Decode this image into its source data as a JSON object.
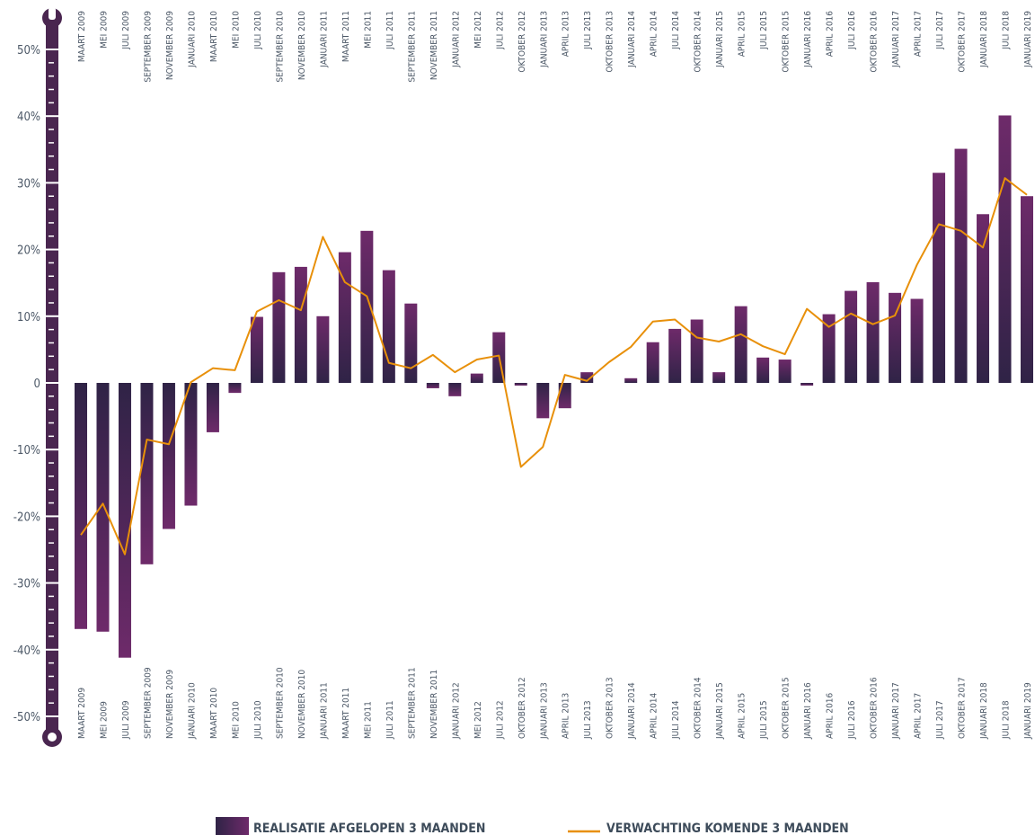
{
  "chart_data": {
    "type": "bar",
    "categories": [
      "MAART 2009",
      "MEI 2009",
      "JULI 2009",
      "SEPTEMBER 2009",
      "NOVEMBER 2009",
      "JANUARI 2010",
      "MAART 2010",
      "MEI 2010",
      "JULI 2010",
      "SEPTEMBER 2010",
      "NOVEMBER 2010",
      "JANUARI 2011",
      "MAART 2011",
      "MEI 2011",
      "JULI 2011",
      "SEPTEMBER 2011",
      "NOVEMBER 2011",
      "JANUARI 2012",
      "MEI 2012",
      "JULI 2012",
      "OKTOBER 2012",
      "JANUARI 2013",
      "APRIL 2013",
      "JULI 2013",
      "OKTOBER 2013",
      "JANUARI 2014",
      "APRIL 2014",
      "JULI 2014",
      "OKTOBER 2014",
      "JANUARI 2015",
      "APRIL 2015",
      "JULI 2015",
      "OKTOBER 2015",
      "JANUARI 2016",
      "APRIL 2016",
      "JULI 2016",
      "OKTOBER 2016",
      "JANUARI 2017",
      "APRIL 2017",
      "JULI 2017",
      "OKTOBER 2017",
      "JANUARI 2018",
      "JULI 2018",
      "JANUARI 2019"
    ],
    "series": [
      {
        "name": "REALISATIE AFGELOPEN 3 MAANDEN",
        "type": "bar",
        "color": "#6e2a6a",
        "values": [
          -36.9,
          -37.3,
          -41.2,
          -27.2,
          -21.9,
          -18.4,
          -7.4,
          -1.5,
          9.9,
          16.6,
          17.4,
          10.0,
          19.6,
          22.8,
          16.9,
          11.9,
          -0.8,
          -2.0,
          1.4,
          7.6,
          -0.4,
          -5.3,
          -3.8,
          1.6,
          0,
          0.7,
          6.1,
          8.1,
          9.5,
          1.6,
          11.5,
          3.8,
          3.5,
          -0.4,
          10.3,
          13.8,
          15.1,
          13.5,
          12.6,
          31.5,
          35.1,
          25.3,
          40.1,
          28.0
        ]
      },
      {
        "name": "VERWACHTING KOMENDE 3 MAANDEN",
        "type": "line",
        "color": "#e8900a",
        "values": [
          -22.8,
          -18.1,
          -25.7,
          -8.5,
          -9.2,
          0.1,
          2.2,
          1.9,
          10.7,
          12.4,
          10.9,
          21.9,
          15.1,
          13.0,
          3.0,
          2.2,
          4.2,
          1.6,
          3.5,
          4.1,
          -12.6,
          -9.6,
          1.2,
          0.3,
          3.1,
          5.4,
          9.2,
          9.5,
          6.8,
          6.2,
          7.3,
          5.5,
          4.3,
          11.1,
          8.4,
          10.4,
          8.8,
          10.1,
          17.7,
          23.8,
          22.8,
          20.3,
          30.7,
          28.2
        ]
      }
    ],
    "ylim": [
      -50,
      50
    ],
    "yticks": [
      {
        "value": -50,
        "label": "-50%"
      },
      {
        "value": -40,
        "label": "-40%"
      },
      {
        "value": -30,
        "label": "-30%"
      },
      {
        "value": -20,
        "label": "-20%"
      },
      {
        "value": -10,
        "label": "-10%"
      },
      0,
      {
        "value": 10,
        "label": "10%"
      },
      {
        "value": 20,
        "label": "20%"
      },
      {
        "value": 30,
        "label": "30%"
      },
      {
        "value": 40,
        "label": "40%"
      },
      {
        "value": 50,
        "label": "50%"
      }
    ],
    "legend": "bottom"
  }
}
